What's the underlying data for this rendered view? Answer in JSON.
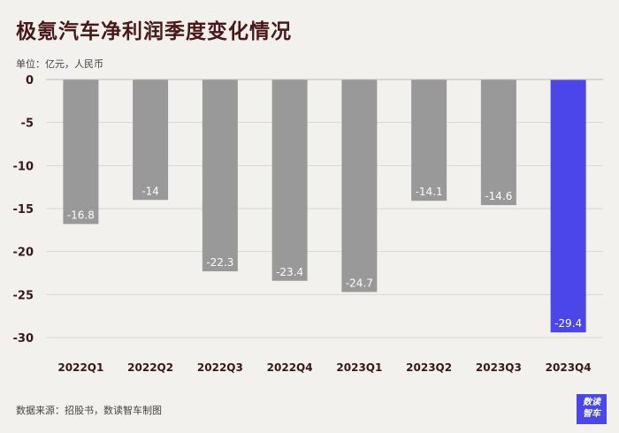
{
  "title": "极氪汽车净利润季度变化情况",
  "unit_note": "单位：亿元，人民币",
  "source": "数据来源：招股书，数读智车制图",
  "logo": [
    "数读",
    "智车"
  ],
  "colors": {
    "bar": "#999999",
    "highlight": "#4b46e8",
    "grid": "#d9d6d3",
    "axis_text": "#3a1616"
  },
  "chart_data": {
    "type": "bar",
    "categories": [
      "2022Q1",
      "2022Q2",
      "2022Q3",
      "2022Q4",
      "2023Q1",
      "2023Q2",
      "2023Q3",
      "2023Q4"
    ],
    "values": [
      -16.8,
      -14,
      -22.3,
      -23.4,
      -24.7,
      -14.1,
      -14.6,
      -29.4
    ],
    "data_labels": [
      "-16.8",
      "-14",
      "-22.3",
      "-23.4",
      "-24.7",
      "-14.1",
      "-14.6",
      "-29.4"
    ],
    "ylim": [
      -30,
      0
    ],
    "yticks": [
      0,
      -5,
      -10,
      -15,
      -20,
      -25,
      -30
    ],
    "ytick_labels": [
      "0",
      "-5",
      "-10",
      "-15",
      "-20",
      "-25",
      "-30"
    ],
    "highlight_index": 7,
    "grid": true
  }
}
